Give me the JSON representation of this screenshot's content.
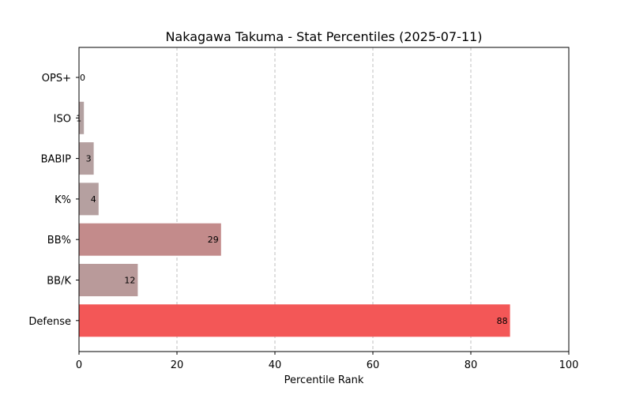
{
  "chart_data": {
    "type": "bar",
    "orientation": "horizontal",
    "title": "Nakagawa Takuma - Stat Percentiles (2025-07-11)",
    "xlabel": "Percentile Rank",
    "ylabel": "",
    "xlim": [
      0,
      100
    ],
    "xticks": [
      0,
      20,
      40,
      60,
      80,
      100
    ],
    "grid": "x-dashed",
    "categories": [
      "OPS+",
      "ISO",
      "BABIP",
      "K%",
      "BB%",
      "BB/K",
      "Defense"
    ],
    "values": [
      0,
      1,
      3,
      4,
      29,
      12,
      88
    ],
    "bar_labels": [
      "0",
      "1",
      "3",
      "4",
      "29",
      "12",
      "88"
    ],
    "colors": [
      "#b3a1a1",
      "#b3a1a1",
      "#b5a0a0",
      "#b5a0a0",
      "#c38b8b",
      "#b99a9a",
      "#f35757"
    ]
  }
}
